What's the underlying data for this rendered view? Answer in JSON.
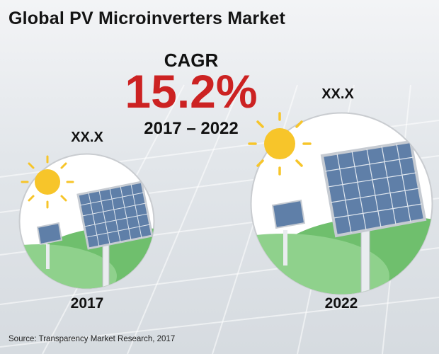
{
  "title": "Global PV Microinverters Market",
  "cagr": {
    "label": "CAGR",
    "value": "15.2%",
    "period": "2017 – 2022"
  },
  "chart_data": {
    "type": "other",
    "title": "Global PV Microinverters Market",
    "categories": [
      "2017",
      "2022"
    ],
    "value_labels": [
      "XX.X",
      "XX.X"
    ],
    "cagr": "15.2%",
    "cagr_period": "2017 – 2022"
  },
  "source": "Source: Transparency Market Research, 2017",
  "colors": {
    "cagr_value": "#cc2222",
    "hill": "#7cc47a",
    "sun": "#f7c52a",
    "panel": "#5f7fa8"
  }
}
